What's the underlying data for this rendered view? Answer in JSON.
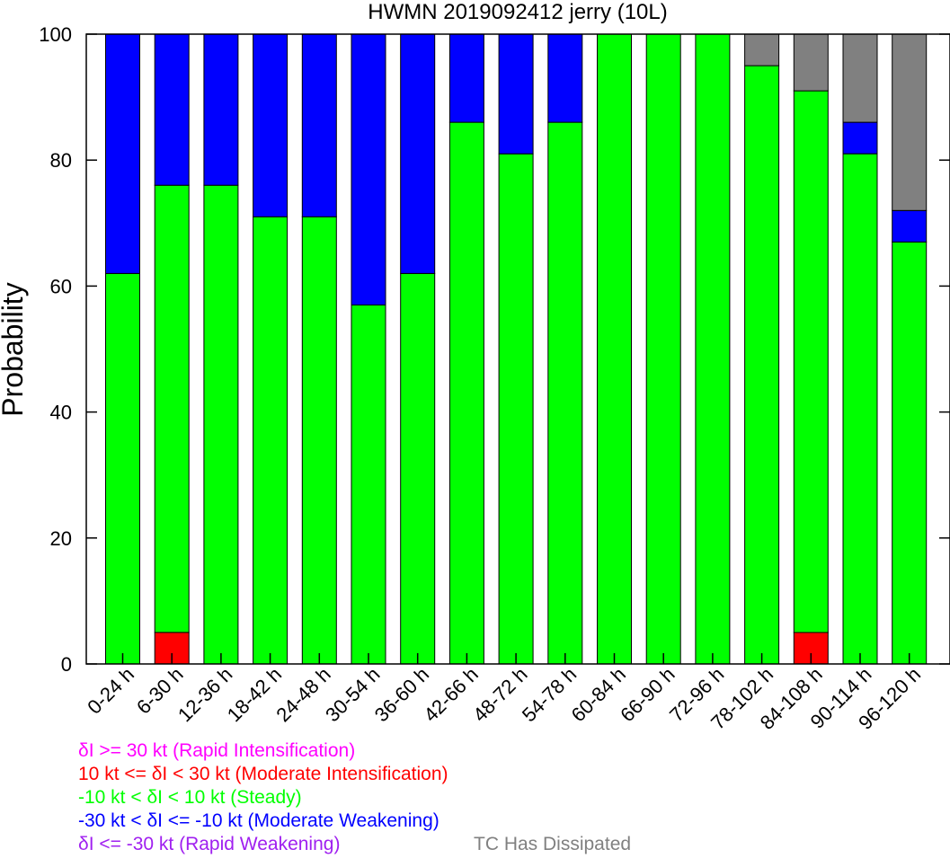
{
  "chart_data": {
    "type": "bar",
    "stacked": true,
    "title": "HWMN 2019092412 jerry (10L)",
    "ylabel": "Probability",
    "xlabel": "",
    "ylim": [
      0,
      100
    ],
    "yticks": [
      0,
      20,
      40,
      60,
      80,
      100
    ],
    "grid": false,
    "categories": [
      "0-24 h",
      "6-30 h",
      "12-36 h",
      "18-42 h",
      "24-48 h",
      "30-54 h",
      "36-60 h",
      "42-66 h",
      "48-72 h",
      "54-78 h",
      "60-84 h",
      "66-90 h",
      "72-96 h",
      "78-102 h",
      "84-108 h",
      "90-114 h",
      "96-120 h"
    ],
    "series": [
      {
        "key": "ri",
        "color": "#ff00ff",
        "values": [
          0,
          0,
          0,
          0,
          0,
          0,
          0,
          0,
          0,
          0,
          0,
          0,
          0,
          0,
          0,
          0,
          0
        ]
      },
      {
        "key": "mi",
        "color": "#ff0000",
        "values": [
          0,
          5,
          0,
          0,
          0,
          0,
          0,
          0,
          0,
          0,
          0,
          0,
          0,
          0,
          5,
          0,
          0
        ]
      },
      {
        "key": "steady",
        "color": "#00ff00",
        "values": [
          62,
          71,
          76,
          71,
          71,
          57,
          62,
          86,
          81,
          86,
          100,
          100,
          100,
          95,
          86,
          81,
          67
        ]
      },
      {
        "key": "mw",
        "color": "#0000ff",
        "values": [
          38,
          24,
          24,
          29,
          29,
          43,
          38,
          14,
          19,
          14,
          0,
          0,
          0,
          0,
          0,
          5,
          5
        ]
      },
      {
        "key": "rw",
        "color": "#a020f0",
        "values": [
          0,
          0,
          0,
          0,
          0,
          0,
          0,
          0,
          0,
          0,
          0,
          0,
          0,
          0,
          0,
          0,
          0
        ]
      },
      {
        "key": "dissipated",
        "color": "#808080",
        "values": [
          0,
          0,
          0,
          0,
          0,
          0,
          0,
          0,
          0,
          0,
          0,
          0,
          0,
          5,
          9,
          14,
          28
        ]
      }
    ],
    "legend": {
      "placement": "bottom-left",
      "entries": [
        {
          "label": "δI >= 30 kt (Rapid Intensification)",
          "color": "#ff00ff"
        },
        {
          "label": "10 kt <= δI < 30 kt (Moderate Intensification)",
          "color": "#ff0000"
        },
        {
          "label": "-10 kt < δI < 10 kt (Steady)",
          "color": "#00ff00"
        },
        {
          "label": "-30 kt < δI <= -10 kt (Moderate Weakening)",
          "color": "#0000ff"
        },
        {
          "label": "δI <= -30 kt (Rapid Weakening)",
          "color": "#a020f0"
        },
        {
          "label": "TC Has Dissipated",
          "color": "#808080"
        }
      ]
    }
  }
}
